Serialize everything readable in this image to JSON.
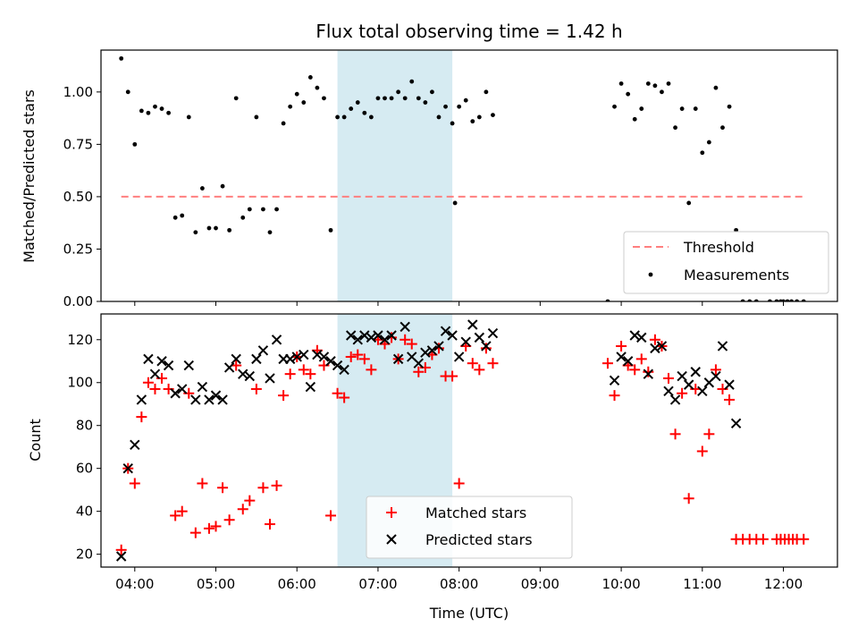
{
  "colors": {
    "threshold": "#ff7f7f",
    "measurement": "#000000",
    "matched": "#ff0000",
    "predicted": "#000000",
    "span": "#add8e6"
  },
  "chart_data": [
    {
      "type": "scatter",
      "title": "Flux total observing time = 1.42 h",
      "xlabel": "",
      "ylabel": "Matched/Predicted stars",
      "xlim": [
        "03:35",
        "12:40"
      ],
      "ylim": [
        0.0,
        1.2
      ],
      "yticks": [
        "0.00",
        "0.25",
        "0.50",
        "0.75",
        "1.00"
      ],
      "shaded_span": [
        "06:30",
        "07:55"
      ],
      "legend": {
        "placement": "lower right",
        "entries": [
          "Threshold",
          "Measurements"
        ]
      },
      "series": [
        {
          "name": "Threshold",
          "kind": "dashed-line",
          "points": [
            [
              "03:50",
              0.5
            ],
            [
              "12:15",
              0.5
            ]
          ]
        },
        {
          "name": "Measurements",
          "kind": "dot",
          "points": [
            [
              "03:50",
              1.16
            ],
            [
              "03:55",
              1.0
            ],
            [
              "04:00",
              0.75
            ],
            [
              "04:05",
              0.91
            ],
            [
              "04:10",
              0.9
            ],
            [
              "04:15",
              0.93
            ],
            [
              "04:20",
              0.92
            ],
            [
              "04:25",
              0.9
            ],
            [
              "04:30",
              0.4
            ],
            [
              "04:35",
              0.41
            ],
            [
              "04:40",
              0.88
            ],
            [
              "04:45",
              0.33
            ],
            [
              "04:50",
              0.54
            ],
            [
              "04:55",
              0.35
            ],
            [
              "05:00",
              0.35
            ],
            [
              "05:05",
              0.55
            ],
            [
              "05:10",
              0.34
            ],
            [
              "05:15",
              0.97
            ],
            [
              "05:20",
              0.4
            ],
            [
              "05:25",
              0.44
            ],
            [
              "05:30",
              0.88
            ],
            [
              "05:35",
              0.44
            ],
            [
              "05:40",
              0.33
            ],
            [
              "05:45",
              0.44
            ],
            [
              "05:50",
              0.85
            ],
            [
              "05:55",
              0.93
            ],
            [
              "06:00",
              0.99
            ],
            [
              "06:05",
              0.95
            ],
            [
              "06:10",
              1.07
            ],
            [
              "06:15",
              1.02
            ],
            [
              "06:20",
              0.97
            ],
            [
              "06:25",
              0.34
            ],
            [
              "06:30",
              0.88
            ],
            [
              "06:35",
              0.88
            ],
            [
              "06:40",
              0.92
            ],
            [
              "06:45",
              0.95
            ],
            [
              "06:50",
              0.9
            ],
            [
              "06:55",
              0.88
            ],
            [
              "07:00",
              0.97
            ],
            [
              "07:05",
              0.97
            ],
            [
              "07:10",
              0.97
            ],
            [
              "07:15",
              1.0
            ],
            [
              "07:20",
              0.97
            ],
            [
              "07:25",
              1.05
            ],
            [
              "07:30",
              0.97
            ],
            [
              "07:35",
              0.95
            ],
            [
              "07:40",
              1.0
            ],
            [
              "07:45",
              0.88
            ],
            [
              "07:50",
              0.93
            ],
            [
              "07:55",
              0.85
            ],
            [
              "07:57",
              0.47
            ],
            [
              "08:00",
              0.93
            ],
            [
              "08:05",
              0.96
            ],
            [
              "08:10",
              0.86
            ],
            [
              "08:15",
              0.88
            ],
            [
              "08:20",
              1.0
            ],
            [
              "08:25",
              0.89
            ],
            [
              "09:50",
              0.0
            ],
            [
              "09:55",
              0.93
            ],
            [
              "10:00",
              1.04
            ],
            [
              "10:05",
              0.99
            ],
            [
              "10:10",
              0.87
            ],
            [
              "10:15",
              0.92
            ],
            [
              "10:20",
              1.04
            ],
            [
              "10:25",
              1.03
            ],
            [
              "10:30",
              1.0
            ],
            [
              "10:35",
              1.04
            ],
            [
              "10:40",
              0.83
            ],
            [
              "10:45",
              0.92
            ],
            [
              "10:50",
              0.47
            ],
            [
              "10:55",
              0.92
            ],
            [
              "11:00",
              0.71
            ],
            [
              "11:05",
              0.76
            ],
            [
              "11:10",
              1.02
            ],
            [
              "11:15",
              0.83
            ],
            [
              "11:20",
              0.93
            ],
            [
              "11:25",
              0.34
            ],
            [
              "11:30",
              0.0
            ],
            [
              "11:35",
              0.0
            ],
            [
              "11:40",
              0.0
            ],
            [
              "11:50",
              0.0
            ],
            [
              "11:55",
              0.0
            ],
            [
              "11:58",
              0.0
            ],
            [
              "12:00",
              0.0
            ],
            [
              "12:03",
              0.0
            ],
            [
              "12:06",
              0.0
            ],
            [
              "12:10",
              0.0
            ],
            [
              "12:15",
              0.0
            ]
          ]
        }
      ]
    },
    {
      "type": "scatter",
      "title": "",
      "xlabel": "Time (UTC)",
      "ylabel": "Count",
      "xlim": [
        "03:35",
        "12:40"
      ],
      "ylim": [
        14,
        132
      ],
      "xticks": [
        "04:00",
        "05:00",
        "06:00",
        "07:00",
        "08:00",
        "09:00",
        "10:00",
        "11:00",
        "12:00"
      ],
      "yticks": [
        "20",
        "40",
        "60",
        "80",
        "100",
        "120"
      ],
      "shaded_span": [
        "06:30",
        "07:55"
      ],
      "legend": {
        "placement": "lower center",
        "entries": [
          "Matched stars",
          "Predicted stars"
        ]
      },
      "series": [
        {
          "name": "Matched stars",
          "kind": "plus",
          "points": [
            [
              "03:50",
              22
            ],
            [
              "03:55",
              60
            ],
            [
              "04:00",
              53
            ],
            [
              "04:05",
              84
            ],
            [
              "04:10",
              100
            ],
            [
              "04:15",
              97
            ],
            [
              "04:20",
              102
            ],
            [
              "04:25",
              97
            ],
            [
              "04:30",
              38
            ],
            [
              "04:35",
              40
            ],
            [
              "04:40",
              95
            ],
            [
              "04:45",
              30
            ],
            [
              "04:50",
              53
            ],
            [
              "04:55",
              32
            ],
            [
              "05:00",
              33
            ],
            [
              "05:05",
              51
            ],
            [
              "05:10",
              36
            ],
            [
              "05:15",
              108
            ],
            [
              "05:20",
              41
            ],
            [
              "05:25",
              45
            ],
            [
              "05:30",
              97
            ],
            [
              "05:35",
              51
            ],
            [
              "05:40",
              34
            ],
            [
              "05:45",
              52
            ],
            [
              "05:50",
              94
            ],
            [
              "05:55",
              104
            ],
            [
              "06:00",
              112
            ],
            [
              "06:05",
              106
            ],
            [
              "06:10",
              104
            ],
            [
              "06:15",
              115
            ],
            [
              "06:20",
              108
            ],
            [
              "06:25",
              38
            ],
            [
              "06:30",
              95
            ],
            [
              "06:35",
              93
            ],
            [
              "06:40",
              112
            ],
            [
              "06:45",
              113
            ],
            [
              "06:50",
              111
            ],
            [
              "06:55",
              106
            ],
            [
              "07:00",
              120
            ],
            [
              "07:05",
              118
            ],
            [
              "07:10",
              121
            ],
            [
              "07:15",
              111
            ],
            [
              "07:20",
              120
            ],
            [
              "07:25",
              118
            ],
            [
              "07:30",
              105
            ],
            [
              "07:35",
              107
            ],
            [
              "07:40",
              113
            ],
            [
              "07:45",
              116
            ],
            [
              "07:50",
              103
            ],
            [
              "07:55",
              103
            ],
            [
              "08:00",
              53
            ],
            [
              "08:05",
              117
            ],
            [
              "08:10",
              109
            ],
            [
              "08:15",
              106
            ],
            [
              "08:20",
              116
            ],
            [
              "08:25",
              109
            ],
            [
              "09:50",
              109
            ],
            [
              "09:55",
              94
            ],
            [
              "10:00",
              117
            ],
            [
              "10:05",
              108
            ],
            [
              "10:10",
              106
            ],
            [
              "10:15",
              111
            ],
            [
              "10:20",
              105
            ],
            [
              "10:25",
              120
            ],
            [
              "10:30",
              117
            ],
            [
              "10:35",
              102
            ],
            [
              "10:40",
              76
            ],
            [
              "10:45",
              95
            ],
            [
              "10:50",
              46
            ],
            [
              "10:55",
              97
            ],
            [
              "11:00",
              68
            ],
            [
              "11:05",
              76
            ],
            [
              "11:10",
              106
            ],
            [
              "11:15",
              97
            ],
            [
              "11:20",
              92
            ],
            [
              "11:25",
              27
            ],
            [
              "11:30",
              27
            ],
            [
              "11:35",
              27
            ],
            [
              "11:40",
              27
            ],
            [
              "11:45",
              27
            ],
            [
              "11:55",
              27
            ],
            [
              "11:58",
              27
            ],
            [
              "12:01",
              27
            ],
            [
              "12:04",
              27
            ],
            [
              "12:07",
              27
            ],
            [
              "12:10",
              27
            ],
            [
              "12:15",
              27
            ]
          ]
        },
        {
          "name": "Predicted stars",
          "kind": "cross",
          "points": [
            [
              "03:50",
              19
            ],
            [
              "03:55",
              60
            ],
            [
              "04:00",
              71
            ],
            [
              "04:05",
              92
            ],
            [
              "04:10",
              111
            ],
            [
              "04:15",
              104
            ],
            [
              "04:20",
              110
            ],
            [
              "04:25",
              108
            ],
            [
              "04:30",
              95
            ],
            [
              "04:35",
              97
            ],
            [
              "04:40",
              108
            ],
            [
              "04:45",
              92
            ],
            [
              "04:50",
              98
            ],
            [
              "04:55",
              92
            ],
            [
              "05:00",
              94
            ],
            [
              "05:05",
              92
            ],
            [
              "05:10",
              107
            ],
            [
              "05:15",
              111
            ],
            [
              "05:20",
              104
            ],
            [
              "05:25",
              103
            ],
            [
              "05:30",
              111
            ],
            [
              "05:35",
              115
            ],
            [
              "05:40",
              102
            ],
            [
              "05:45",
              120
            ],
            [
              "05:50",
              111
            ],
            [
              "05:55",
              111
            ],
            [
              "06:00",
              112
            ],
            [
              "06:05",
              113
            ],
            [
              "06:10",
              98
            ],
            [
              "06:15",
              113
            ],
            [
              "06:20",
              112
            ],
            [
              "06:25",
              110
            ],
            [
              "06:30",
              108
            ],
            [
              "06:35",
              106
            ],
            [
              "06:40",
              122
            ],
            [
              "06:45",
              120
            ],
            [
              "06:50",
              122
            ],
            [
              "06:55",
              121
            ],
            [
              "07:00",
              122
            ],
            [
              "07:05",
              120
            ],
            [
              "07:10",
              122
            ],
            [
              "07:15",
              111
            ],
            [
              "07:20",
              126
            ],
            [
              "07:25",
              112
            ],
            [
              "07:30",
              109
            ],
            [
              "07:35",
              114
            ],
            [
              "07:40",
              115
            ],
            [
              "07:45",
              117
            ],
            [
              "07:50",
              124
            ],
            [
              "07:55",
              122
            ],
            [
              "08:00",
              112
            ],
            [
              "08:05",
              119
            ],
            [
              "08:10",
              127
            ],
            [
              "08:15",
              121
            ],
            [
              "08:20",
              117
            ],
            [
              "08:25",
              123
            ],
            [
              "09:55",
              101
            ],
            [
              "10:00",
              112
            ],
            [
              "10:05",
              110
            ],
            [
              "10:10",
              122
            ],
            [
              "10:15",
              121
            ],
            [
              "10:20",
              104
            ],
            [
              "10:25",
              116
            ],
            [
              "10:30",
              117
            ],
            [
              "10:35",
              96
            ],
            [
              "10:40",
              92
            ],
            [
              "10:45",
              103
            ],
            [
              "10:50",
              99
            ],
            [
              "10:55",
              105
            ],
            [
              "11:00",
              96
            ],
            [
              "11:05",
              100
            ],
            [
              "11:10",
              103
            ],
            [
              "11:15",
              117
            ],
            [
              "11:20",
              99
            ],
            [
              "11:25",
              81
            ]
          ]
        }
      ]
    }
  ]
}
